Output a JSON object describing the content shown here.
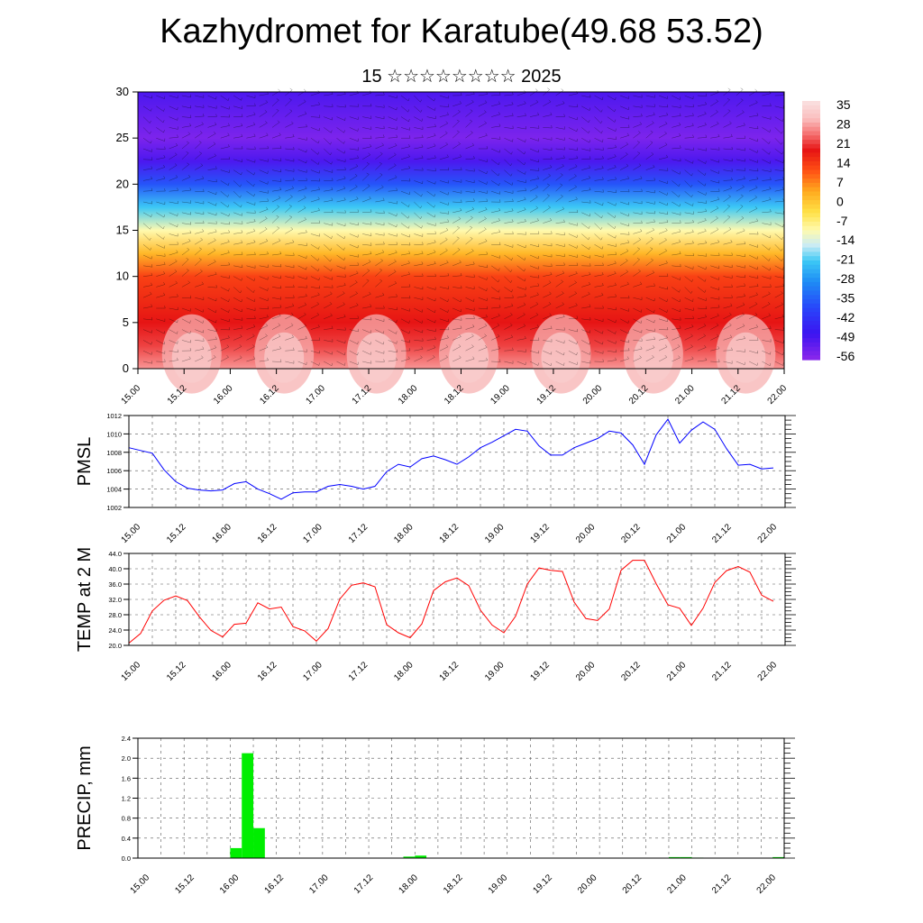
{
  "header": {
    "title": "Kazhydromet for Karatube(49.68 53.52)",
    "subtitle": "15 ☆☆☆☆☆☆☆☆ 2025"
  },
  "time_labels": [
    "15.00",
    "15.12",
    "16.00",
    "16.12",
    "17.00",
    "17.12",
    "18.00",
    "18.12",
    "19.00",
    "19.12",
    "20.00",
    "20.12",
    "21.00",
    "21.12",
    "22.00"
  ],
  "chart_data": [
    {
      "type": "heatmap",
      "title": "",
      "ylim": [
        0,
        30
      ],
      "yticks": [
        "0",
        "5",
        "10",
        "15",
        "20",
        "25",
        "30"
      ],
      "x_range": [
        0,
        168
      ],
      "x_tick_labels": [
        "15.00",
        "15.12",
        "16.00",
        "16.12",
        "17.00",
        "17.12",
        "18.00",
        "18.12",
        "19.00",
        "19.12",
        "20.00",
        "20.12",
        "21.00",
        "21.12",
        "22.00"
      ],
      "colorbar": {
        "labels": [
          "35",
          "28",
          "21",
          "14",
          "7",
          "0",
          "-7",
          "-14",
          "-21",
          "-28",
          "-35",
          "-42",
          "-49",
          "-56"
        ],
        "range": [
          -60,
          40
        ]
      },
      "profile": {
        "levels": [
          0,
          2.5,
          5,
          7.5,
          10,
          12.5,
          15,
          17.5,
          20,
          22.5,
          25,
          27.5,
          30
        ],
        "values": [
          30,
          24,
          21,
          18,
          15,
          3,
          -10,
          -22,
          -38,
          -52,
          -58,
          -55,
          -52
        ]
      }
    },
    {
      "type": "line",
      "ylabel": "PMSL",
      "ylim": [
        1002,
        1012
      ],
      "yticks": [
        "1002",
        "1004",
        "1006",
        "1008",
        "1010",
        "1012"
      ],
      "color": "#0000ff",
      "x": [
        0,
        3,
        6,
        9,
        12,
        15,
        18,
        21,
        24,
        27,
        30,
        33,
        36,
        39,
        42,
        45,
        48,
        51,
        54,
        57,
        60,
        63,
        66,
        69,
        72,
        75,
        78,
        81,
        84,
        87,
        90,
        93,
        96,
        99,
        102,
        105,
        108,
        111,
        114,
        117,
        120,
        123,
        126,
        129,
        132,
        135,
        138,
        141,
        144,
        147,
        150,
        153,
        156,
        159,
        162,
        165
      ],
      "values": [
        1008.5,
        1008.2,
        1007.9,
        1006.1,
        1004.8,
        1004.1,
        1003.9,
        1003.8,
        1003.9,
        1004.6,
        1004.8,
        1004.0,
        1003.5,
        1002.9,
        1003.6,
        1003.7,
        1003.7,
        1004.3,
        1004.5,
        1004.3,
        1004.0,
        1004.3,
        1005.9,
        1006.7,
        1006.4,
        1007.3,
        1007.6,
        1007.2,
        1006.7,
        1007.5,
        1008.5,
        1009.1,
        1009.8,
        1010.5,
        1010.3,
        1008.7,
        1007.7,
        1007.7,
        1008.5,
        1009.0,
        1009.5,
        1010.3,
        1010.1,
        1008.8,
        1006.7,
        1009.9,
        1011.6,
        1009.0,
        1010.4,
        1011.3,
        1010.5,
        1008.4,
        1006.6,
        1006.7,
        1006.2,
        1006.3
      ]
    },
    {
      "type": "line",
      "ylabel": "TEMP at 2 M",
      "ylim": [
        20,
        44
      ],
      "yticks": [
        "20.0",
        "24.0",
        "28.0",
        "32.0",
        "36.0",
        "40.0",
        "44.0"
      ],
      "color": "#ff0000",
      "x": [
        0,
        3,
        6,
        9,
        12,
        15,
        18,
        21,
        24,
        27,
        30,
        33,
        36,
        39,
        42,
        45,
        48,
        51,
        54,
        57,
        60,
        63,
        66,
        69,
        72,
        75,
        78,
        81,
        84,
        87,
        90,
        93,
        96,
        99,
        102,
        105,
        108,
        111,
        114,
        117,
        120,
        123,
        126,
        129,
        132,
        135,
        138,
        141,
        144,
        147,
        150,
        153,
        156,
        159,
        162,
        165
      ],
      "values": [
        20.6,
        23.1,
        29.0,
        31.8,
        32.9,
        31.7,
        27.5,
        23.9,
        22.2,
        25.5,
        25.8,
        31.1,
        29.5,
        30.0,
        24.9,
        23.8,
        21.1,
        24.4,
        32.1,
        35.7,
        36.3,
        35.3,
        25.4,
        23.3,
        22.0,
        25.6,
        34.3,
        36.6,
        37.6,
        35.6,
        29.2,
        25.3,
        23.3,
        27.6,
        36.0,
        40.2,
        39.6,
        39.3,
        31.3,
        27.0,
        26.5,
        29.5,
        39.6,
        42.2,
        42.2,
        36.1,
        30.6,
        29.7,
        25.2,
        29.7,
        36.4,
        39.5,
        40.6,
        39.1,
        33.1,
        31.5
      ]
    },
    {
      "type": "bar",
      "ylabel": "PRECIP, mm",
      "ylim": [
        0,
        2.4
      ],
      "yticks": [
        "0.0",
        "0.4",
        "0.8",
        "1.2",
        "1.6",
        "2.0",
        "2.4"
      ],
      "color": "#00ee00",
      "x": [
        24,
        27,
        30,
        69,
        72,
        138,
        141,
        144,
        165
      ],
      "values": [
        0.2,
        2.1,
        0.6,
        0.03,
        0.05,
        0.02,
        0.02,
        0.01,
        0.02
      ]
    }
  ]
}
